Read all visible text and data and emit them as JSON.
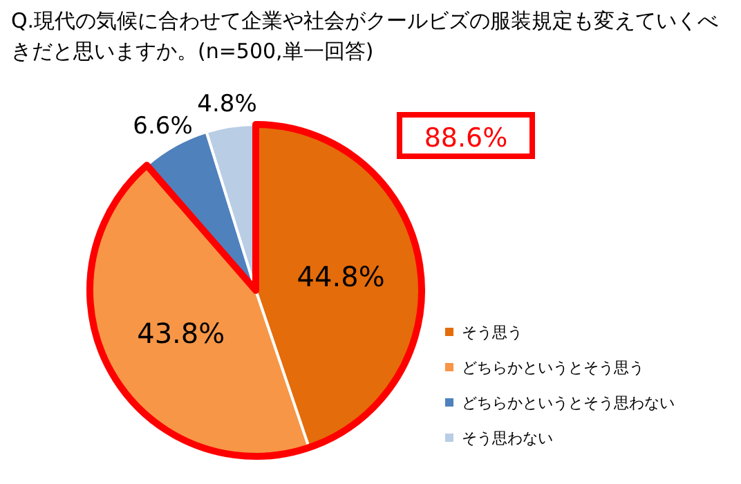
{
  "chart_data": {
    "type": "pie",
    "title": "Q.現代の気候に合わせて企業や社会がクールビズの服装規定も変えていくべきだと思いますか。(n=500,単一回答)",
    "categories": [
      "そう思う",
      "どちらかというとそう思う",
      "どちらかというとそう思わない",
      "そう思わない"
    ],
    "values": [
      44.8,
      43.8,
      6.6,
      4.8
    ],
    "colors": [
      "#e46c0a",
      "#f79646",
      "#4f81bd",
      "#b9cde5"
    ],
    "value_labels": [
      "44.8%",
      "43.8%",
      "6.6%",
      "4.8%"
    ],
    "annotations": [
      "88.6%"
    ],
    "legend": "right"
  }
}
